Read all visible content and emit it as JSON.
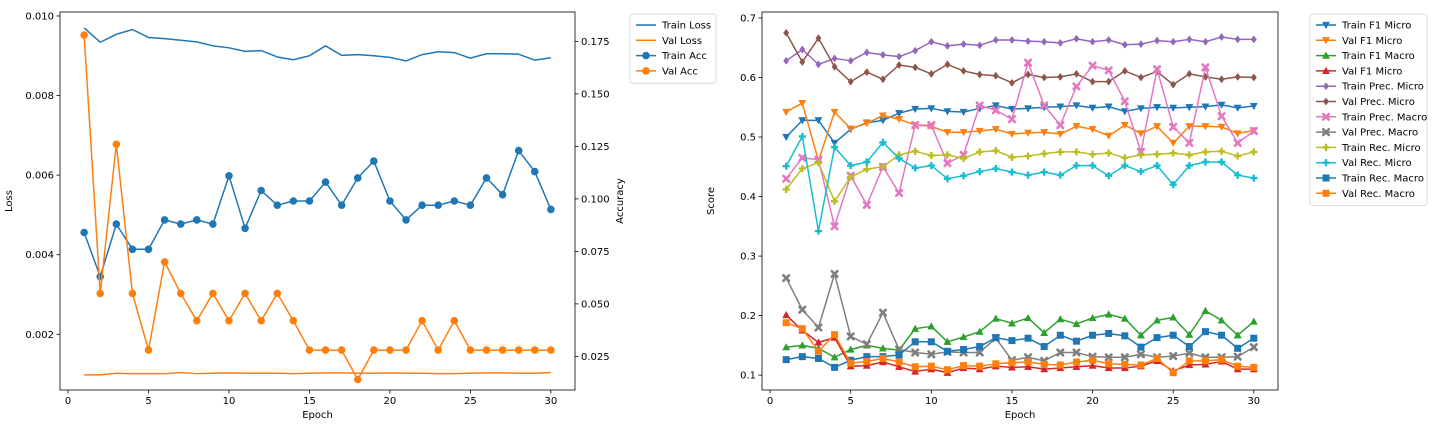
{
  "chart_data": [
    {
      "type": "line",
      "xlabel": "Epoch",
      "ylabel": "Loss",
      "y2label": "Accuracy",
      "xlim": [
        -0.5,
        31.5
      ],
      "ylim": [
        0.0006,
        0.0101
      ],
      "y2lim": [
        0.009,
        0.189
      ],
      "xticks": [
        "0",
        "5",
        "10",
        "15",
        "20",
        "25",
        "30"
      ],
      "yticks": [
        "0.002",
        "0.004",
        "0.006",
        "0.008",
        "0.010"
      ],
      "y2ticks": [
        "0.025",
        "0.050",
        "0.075",
        "0.100",
        "0.125",
        "0.150",
        "0.175"
      ],
      "legend_position": "outside upper right",
      "x": [
        1,
        2,
        3,
        4,
        5,
        6,
        7,
        8,
        9,
        10,
        11,
        12,
        13,
        14,
        15,
        16,
        17,
        18,
        19,
        20,
        21,
        22,
        23,
        24,
        25,
        26,
        27,
        28,
        29,
        30
      ],
      "series": [
        {
          "name": "Train Loss",
          "axis": "left",
          "color": "#1f77b4",
          "marker": "none",
          "values": [
            0.0097,
            0.00934,
            0.00954,
            0.00966,
            0.00946,
            0.00943,
            0.00939,
            0.00935,
            0.00925,
            0.0092,
            0.00911,
            0.00913,
            0.00897,
            0.0089,
            0.009,
            0.00925,
            0.00901,
            0.00903,
            0.009,
            0.00896,
            0.00887,
            0.00903,
            0.0091,
            0.00908,
            0.00894,
            0.00905,
            0.00905,
            0.00904,
            0.00889,
            0.00895
          ]
        },
        {
          "name": "Val Loss",
          "axis": "left",
          "color": "#ff7f0e",
          "marker": "none",
          "values": [
            0.00098,
            0.00098,
            0.00102,
            0.00101,
            0.00101,
            0.00101,
            0.00104,
            0.00101,
            0.00102,
            0.00103,
            0.00102,
            0.00102,
            0.00102,
            0.00101,
            0.00102,
            0.00103,
            0.00103,
            0.00102,
            0.00102,
            0.00103,
            0.00102,
            0.00102,
            0.00101,
            0.00101,
            0.00102,
            0.00103,
            0.00103,
            0.00102,
            0.00102,
            0.00104
          ]
        },
        {
          "name": "Train Acc",
          "axis": "right",
          "color": "#1f77b4",
          "marker": "circle",
          "values": [
            0.084,
            0.063,
            0.088,
            0.076,
            0.076,
            0.09,
            0.088,
            0.09,
            0.088,
            0.111,
            0.086,
            0.104,
            0.097,
            0.099,
            0.099,
            0.108,
            0.097,
            0.11,
            0.118,
            0.099,
            0.09,
            0.097,
            0.097,
            0.099,
            0.097,
            0.11,
            0.102,
            0.123,
            0.113,
            0.095
          ]
        },
        {
          "name": "Val Acc",
          "axis": "right",
          "color": "#ff7f0e",
          "marker": "circle",
          "values": [
            0.178,
            0.055,
            0.126,
            0.055,
            0.028,
            0.07,
            0.055,
            0.042,
            0.055,
            0.042,
            0.055,
            0.042,
            0.055,
            0.042,
            0.028,
            0.028,
            0.028,
            0.014,
            0.028,
            0.028,
            0.028,
            0.042,
            0.028,
            0.042,
            0.028,
            0.028,
            0.028,
            0.028,
            0.028,
            0.028
          ]
        }
      ]
    },
    {
      "type": "line",
      "xlabel": "Epoch",
      "ylabel": "Score",
      "xlim": [
        -0.5,
        31.5
      ],
      "ylim": [
        0.075,
        0.71
      ],
      "xticks": [
        "0",
        "5",
        "10",
        "15",
        "20",
        "25",
        "30"
      ],
      "yticks": [
        "0.1",
        "0.2",
        "0.3",
        "0.4",
        "0.5",
        "0.6",
        "0.7"
      ],
      "legend_position": "outside upper right",
      "x": [
        1,
        2,
        3,
        4,
        5,
        6,
        7,
        8,
        9,
        10,
        11,
        12,
        13,
        14,
        15,
        16,
        17,
        18,
        19,
        20,
        21,
        22,
        23,
        24,
        25,
        26,
        27,
        28,
        29,
        30
      ],
      "series": [
        {
          "name": "Train F1 Micro",
          "color": "#1f77b4",
          "marker": "triangle-down",
          "values": [
            0.5,
            0.528,
            0.528,
            0.49,
            0.513,
            0.524,
            0.528,
            0.54,
            0.547,
            0.548,
            0.543,
            0.542,
            0.548,
            0.553,
            0.547,
            0.548,
            0.55,
            0.551,
            0.553,
            0.549,
            0.551,
            0.543,
            0.548,
            0.55,
            0.549,
            0.55,
            0.551,
            0.554,
            0.549,
            0.552
          ]
        },
        {
          "name": "Val F1 Micro",
          "color": "#ff7f0e",
          "marker": "triangle-down",
          "values": [
            0.542,
            0.557,
            0.46,
            0.542,
            0.514,
            0.523,
            0.536,
            0.53,
            0.52,
            0.518,
            0.508,
            0.508,
            0.51,
            0.513,
            0.505,
            0.507,
            0.508,
            0.505,
            0.518,
            0.513,
            0.502,
            0.52,
            0.506,
            0.518,
            0.49,
            0.518,
            0.518,
            0.517,
            0.506,
            0.511
          ]
        },
        {
          "name": "Train F1 Macro",
          "color": "#2ca02c",
          "marker": "triangle-up",
          "values": [
            0.147,
            0.15,
            0.145,
            0.13,
            0.143,
            0.15,
            0.145,
            0.142,
            0.178,
            0.182,
            0.156,
            0.164,
            0.173,
            0.195,
            0.187,
            0.196,
            0.171,
            0.194,
            0.186,
            0.196,
            0.202,
            0.195,
            0.167,
            0.192,
            0.197,
            0.168,
            0.208,
            0.192,
            0.167,
            0.19
          ]
        },
        {
          "name": "Val F1 Micro",
          "color": "#d62728",
          "marker": "triangle-up",
          "values": [
            0.201,
            0.175,
            0.155,
            0.163,
            0.115,
            0.116,
            0.122,
            0.114,
            0.106,
            0.11,
            0.104,
            0.112,
            0.11,
            0.115,
            0.113,
            0.114,
            0.11,
            0.112,
            0.114,
            0.116,
            0.112,
            0.112,
            0.115,
            0.124,
            0.107,
            0.117,
            0.118,
            0.123,
            0.11,
            0.11
          ]
        },
        {
          "name": "Train Prec. Micro",
          "color": "#9467bd",
          "marker": "diamond",
          "values": [
            0.628,
            0.647,
            0.622,
            0.632,
            0.628,
            0.642,
            0.638,
            0.635,
            0.645,
            0.66,
            0.653,
            0.656,
            0.654,
            0.663,
            0.663,
            0.661,
            0.66,
            0.658,
            0.665,
            0.66,
            0.663,
            0.655,
            0.656,
            0.662,
            0.66,
            0.664,
            0.66,
            0.668,
            0.664,
            0.664
          ]
        },
        {
          "name": "Val Prec. Micro",
          "color": "#8c564b",
          "marker": "diamond",
          "values": [
            0.675,
            0.626,
            0.666,
            0.618,
            0.593,
            0.609,
            0.597,
            0.621,
            0.617,
            0.606,
            0.622,
            0.611,
            0.605,
            0.603,
            0.591,
            0.605,
            0.6,
            0.601,
            0.606,
            0.593,
            0.593,
            0.611,
            0.6,
            0.61,
            0.588,
            0.606,
            0.601,
            0.597,
            0.601,
            0.6
          ]
        },
        {
          "name": "Train Prec. Macro",
          "color": "#e377c2",
          "marker": "x",
          "values": [
            0.43,
            0.465,
            0.462,
            0.35,
            0.435,
            0.386,
            0.45,
            0.406,
            0.52,
            0.52,
            0.456,
            0.47,
            0.553,
            0.545,
            0.53,
            0.625,
            0.553,
            0.52,
            0.585,
            0.62,
            0.612,
            0.56,
            0.475,
            0.614,
            0.517,
            0.49,
            0.617,
            0.535,
            0.49,
            0.51
          ]
        },
        {
          "name": "Val Prec. Macro",
          "color": "#7f7f7f",
          "marker": "x",
          "values": [
            0.263,
            0.21,
            0.18,
            0.27,
            0.165,
            0.152,
            0.205,
            0.143,
            0.138,
            0.135,
            0.139,
            0.138,
            0.138,
            0.162,
            0.125,
            0.13,
            0.124,
            0.138,
            0.138,
            0.131,
            0.13,
            0.13,
            0.135,
            0.13,
            0.132,
            0.137,
            0.13,
            0.13,
            0.131,
            0.147
          ]
        },
        {
          "name": "Train Rec. Micro",
          "color": "#bcbd22",
          "marker": "plus",
          "values": [
            0.412,
            0.447,
            0.457,
            0.392,
            0.433,
            0.446,
            0.45,
            0.47,
            0.476,
            0.469,
            0.47,
            0.464,
            0.475,
            0.477,
            0.466,
            0.468,
            0.472,
            0.475,
            0.475,
            0.471,
            0.473,
            0.465,
            0.47,
            0.471,
            0.473,
            0.47,
            0.475,
            0.476,
            0.468,
            0.475
          ]
        },
        {
          "name": "Val Rec. Micro",
          "color": "#17becf",
          "marker": "plus",
          "values": [
            0.451,
            0.501,
            0.342,
            0.483,
            0.452,
            0.458,
            0.491,
            0.464,
            0.448,
            0.452,
            0.43,
            0.435,
            0.442,
            0.447,
            0.441,
            0.436,
            0.441,
            0.436,
            0.452,
            0.452,
            0.435,
            0.452,
            0.442,
            0.452,
            0.42,
            0.452,
            0.458,
            0.458,
            0.436,
            0.431
          ]
        },
        {
          "name": "Train Rec. Macro",
          "color": "#1f77b4",
          "marker": "square",
          "values": [
            0.126,
            0.131,
            0.128,
            0.113,
            0.125,
            0.131,
            0.131,
            0.134,
            0.156,
            0.156,
            0.14,
            0.143,
            0.148,
            0.163,
            0.158,
            0.162,
            0.148,
            0.167,
            0.157,
            0.167,
            0.17,
            0.166,
            0.147,
            0.163,
            0.167,
            0.148,
            0.173,
            0.167,
            0.145,
            0.162
          ]
        },
        {
          "name": "Val Rec. Macro",
          "color": "#ff7f0e",
          "marker": "square",
          "values": [
            0.188,
            0.178,
            0.14,
            0.168,
            0.12,
            0.123,
            0.128,
            0.122,
            0.114,
            0.115,
            0.109,
            0.116,
            0.115,
            0.119,
            0.121,
            0.122,
            0.118,
            0.117,
            0.122,
            0.125,
            0.119,
            0.118,
            0.117,
            0.128,
            0.104,
            0.124,
            0.124,
            0.126,
            0.115,
            0.113
          ]
        }
      ]
    }
  ]
}
